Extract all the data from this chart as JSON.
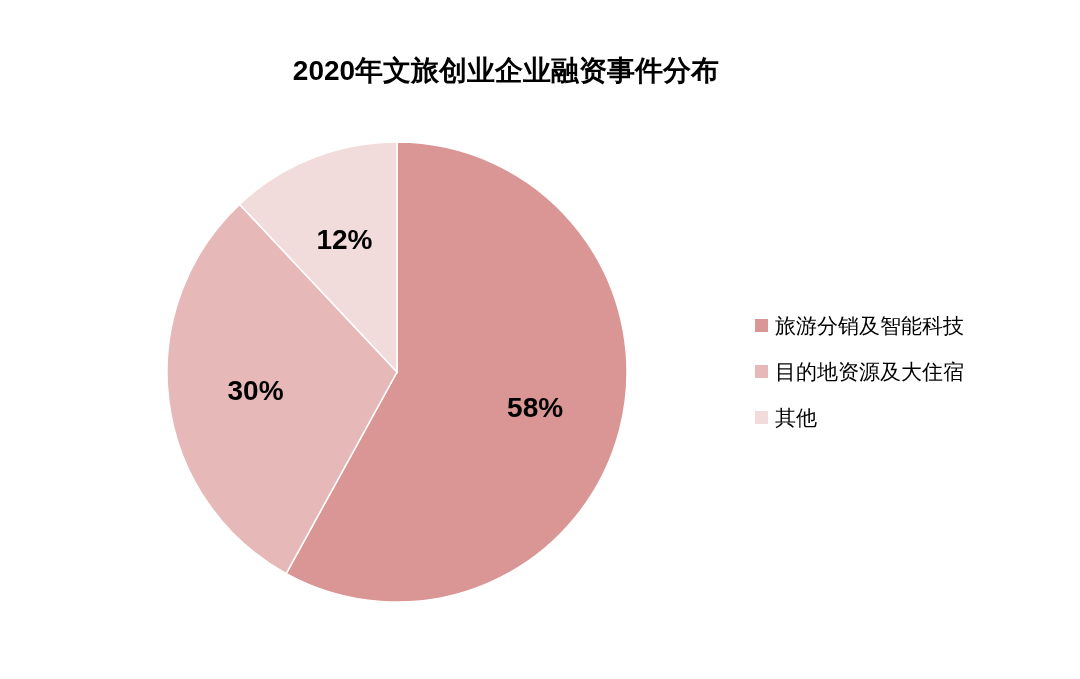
{
  "chart_data": {
    "type": "pie",
    "title": "2020年文旅创业企业融资事件分布",
    "categories": [
      "旅游分销及智能科技",
      "目的地资源及大住宿",
      "其他"
    ],
    "values": [
      58,
      30,
      12
    ],
    "colors": [
      "#d99694",
      "#e6b9b8",
      "#f2dcdb"
    ],
    "value_labels": [
      "58%",
      "30%",
      "12%"
    ],
    "legend": "right"
  }
}
